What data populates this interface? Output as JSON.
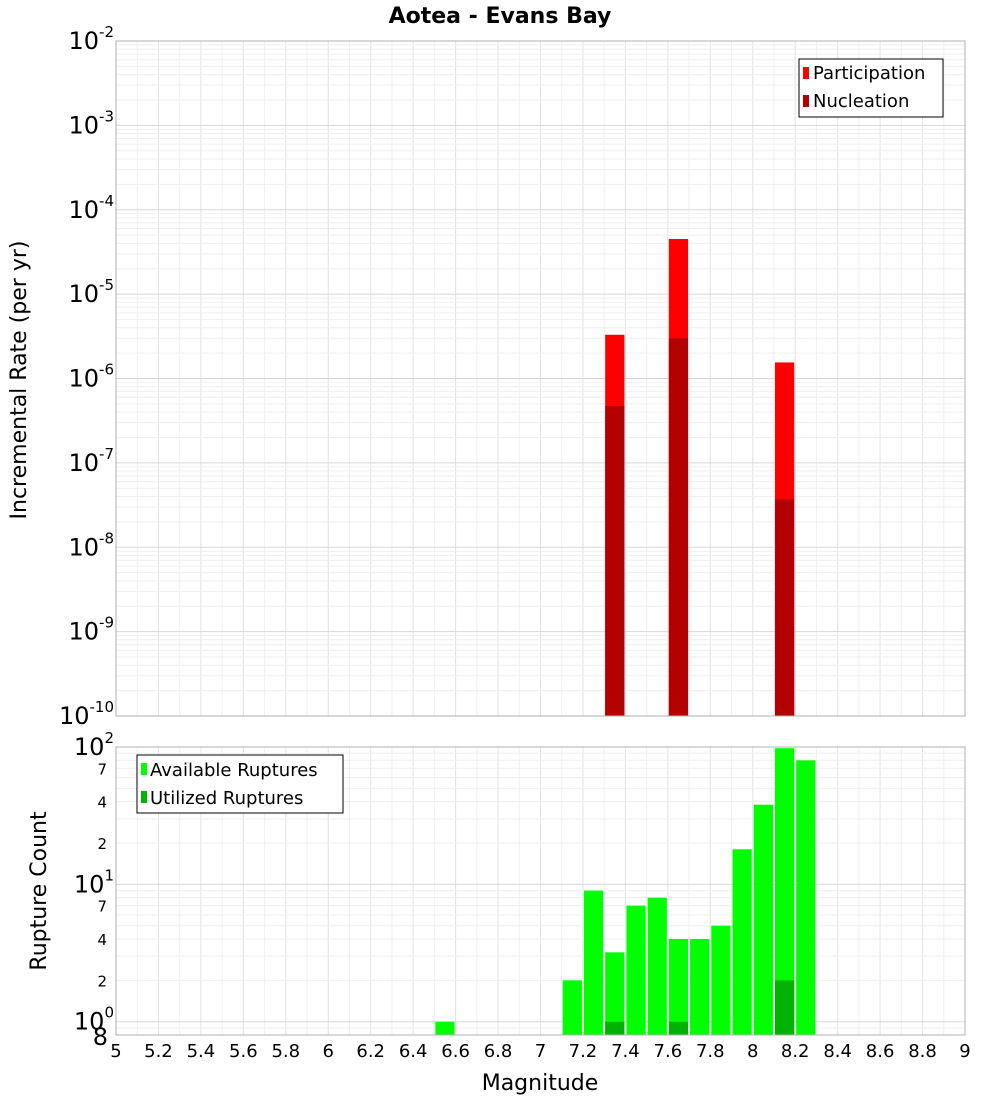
{
  "chart_data": [
    {
      "type": "bar",
      "title": "Aotea - Evans Bay",
      "xlabel": "Magnitude",
      "ylabel": "Incremental Rate (per yr)",
      "yscale": "log",
      "ylim": [
        1e-10,
        0.01
      ],
      "xlim": [
        5,
        9
      ],
      "bar_width": 0.1,
      "legend": {
        "position": "top-right",
        "entries": [
          "Participation",
          "Nucleation"
        ]
      },
      "series": [
        {
          "name": "Participation",
          "color": "#ff0000",
          "x": [
            7.35,
            7.65,
            8.15
          ],
          "values": [
            3.3e-06,
            4.5e-05,
            1.55e-06
          ]
        },
        {
          "name": "Nucleation",
          "color": "#b30000",
          "x": [
            7.35,
            7.65,
            8.15
          ],
          "values": [
            4.7e-07,
            3e-06,
            3.7e-08
          ]
        }
      ],
      "y_ticks": [
        {
          "base": "10",
          "exp": "-10"
        },
        {
          "base": "10",
          "exp": "-9"
        },
        {
          "base": "10",
          "exp": "-8"
        },
        {
          "base": "10",
          "exp": "-7"
        },
        {
          "base": "10",
          "exp": "-6"
        },
        {
          "base": "10",
          "exp": "-5"
        },
        {
          "base": "10",
          "exp": "-4"
        },
        {
          "base": "10",
          "exp": "-3"
        },
        {
          "base": "10",
          "exp": "-2"
        }
      ]
    },
    {
      "type": "bar",
      "xlabel": "Magnitude",
      "ylabel": "Rupture Count",
      "yscale": "log",
      "ylim": [
        0.8,
        100
      ],
      "xlim": [
        5,
        9
      ],
      "bar_width": 0.1,
      "legend": {
        "position": "top-left",
        "entries": [
          "Available Ruptures",
          "Utilized Ruptures"
        ]
      },
      "series": [
        {
          "name": "Available Ruptures",
          "color": "#00ff00",
          "x": [
            6.55,
            7.15,
            7.25,
            7.35,
            7.45,
            7.55,
            7.65,
            7.75,
            7.85,
            7.95,
            8.05,
            8.15,
            8.25
          ],
          "values": [
            1,
            2,
            9,
            3.2,
            7,
            8,
            4,
            4,
            5,
            18,
            38,
            98,
            80
          ]
        },
        {
          "name": "Utilized Ruptures",
          "color": "#00b300",
          "x": [
            7.35,
            7.65,
            8.15
          ],
          "values": [
            1,
            1,
            2
          ]
        }
      ],
      "y_ticks": [
        {
          "base": "10",
          "exp": "0"
        },
        {
          "base": "10",
          "exp": "1"
        },
        {
          "base": "10",
          "exp": "2"
        }
      ],
      "y_minor_labels": [
        "8",
        "2",
        "4",
        "7",
        "2",
        "4",
        "7"
      ],
      "x_tick_labels": [
        "5",
        "5.2",
        "5.4",
        "5.6",
        "5.8",
        "6",
        "6.2",
        "6.4",
        "6.6",
        "6.8",
        "7",
        "7.2",
        "7.4",
        "7.6",
        "7.8",
        "8",
        "8.2",
        "8.4",
        "8.6",
        "8.8",
        "9"
      ]
    }
  ]
}
